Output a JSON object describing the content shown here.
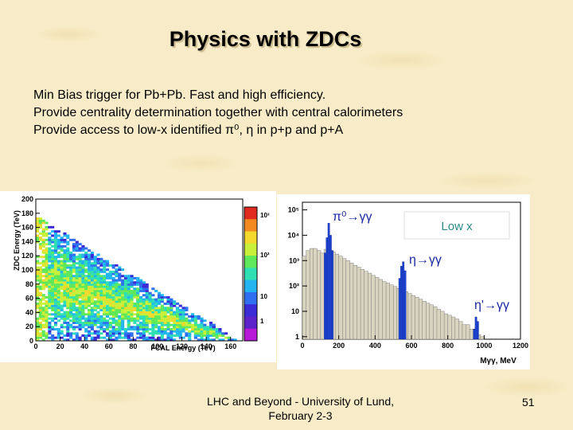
{
  "slide": {
    "title": "Physics with ZDCs",
    "bullets": [
      "Min Bias trigger for Pb+Pb. Fast and high efficiency.",
      "Provide centrality determination together with central calorimeters",
      "Provide access to low-x identified π⁰, η in p+p and p+A"
    ],
    "footer_line1": "LHC and Beyond - University of Lund,",
    "footer_line2": "February 2-3",
    "page_number": "51"
  },
  "chart_data": [
    {
      "type": "heatmap",
      "ylabel": "ZDC Energy (TeV)",
      "xlabel": "FCAL Energy (TeV)",
      "xticks": [
        "0",
        "20",
        "40",
        "60",
        "80",
        "100",
        "120",
        "140",
        "160"
      ],
      "yticks": [
        "0",
        "20",
        "40",
        "60",
        "80",
        "100",
        "120",
        "140",
        "160",
        "180",
        "200"
      ],
      "xlim": [
        0,
        170
      ],
      "ylim": [
        0,
        200
      ],
      "colorbar_ticks": [
        "1",
        "10",
        "10²",
        "10³"
      ]
    },
    {
      "type": "bar",
      "xlabel": "Mγγ, MeV",
      "log_y": true,
      "xlim": [
        0,
        1200
      ],
      "xticks": [
        "0",
        "200",
        "400",
        "600",
        "800",
        "1000",
        "1200"
      ],
      "yticks": [
        "1",
        "10",
        "10²",
        "10³",
        "10⁴",
        "10⁵"
      ],
      "annotations": [
        "π⁰→γγ",
        "η→γγ",
        "η'→γγ"
      ],
      "box_label": "Low x",
      "background_bins": {
        "x": [
          0,
          20,
          40,
          60,
          80,
          100,
          120,
          140,
          160,
          180,
          200,
          220,
          240,
          260,
          280,
          300,
          320,
          340,
          360,
          380,
          400,
          420,
          440,
          460,
          480,
          500,
          520,
          540,
          560,
          580,
          600,
          620,
          640,
          660,
          680,
          700,
          720,
          740,
          760,
          780,
          800,
          820,
          840,
          860,
          880,
          900,
          920,
          940,
          960,
          980
        ],
        "values": [
          1500,
          2500,
          3000,
          3000,
          2500,
          2000,
          2800,
          2500,
          2200,
          1800,
          1500,
          1200,
          1000,
          800,
          650,
          550,
          450,
          380,
          320,
          260,
          220,
          180,
          150,
          130,
          110,
          95,
          80,
          70,
          60,
          50,
          42,
          36,
          30,
          25,
          21,
          18,
          15,
          12,
          10,
          8,
          7,
          6,
          5,
          4,
          3,
          3,
          2,
          1.5,
          1.2,
          1
        ]
      },
      "peaks": [
        {
          "name": "π⁰→γγ",
          "x": [
            120,
            130,
            140,
            150,
            160
          ],
          "values": [
            2000,
            8000,
            30000,
            10000,
            2500
          ]
        },
        {
          "name": "η→γγ",
          "x": [
            530,
            540,
            550,
            560
          ],
          "values": [
            200,
            600,
            900,
            400
          ]
        },
        {
          "name": "η'→γγ",
          "x": [
            940,
            950,
            960
          ],
          "values": [
            2,
            6,
            4
          ]
        }
      ]
    }
  ]
}
